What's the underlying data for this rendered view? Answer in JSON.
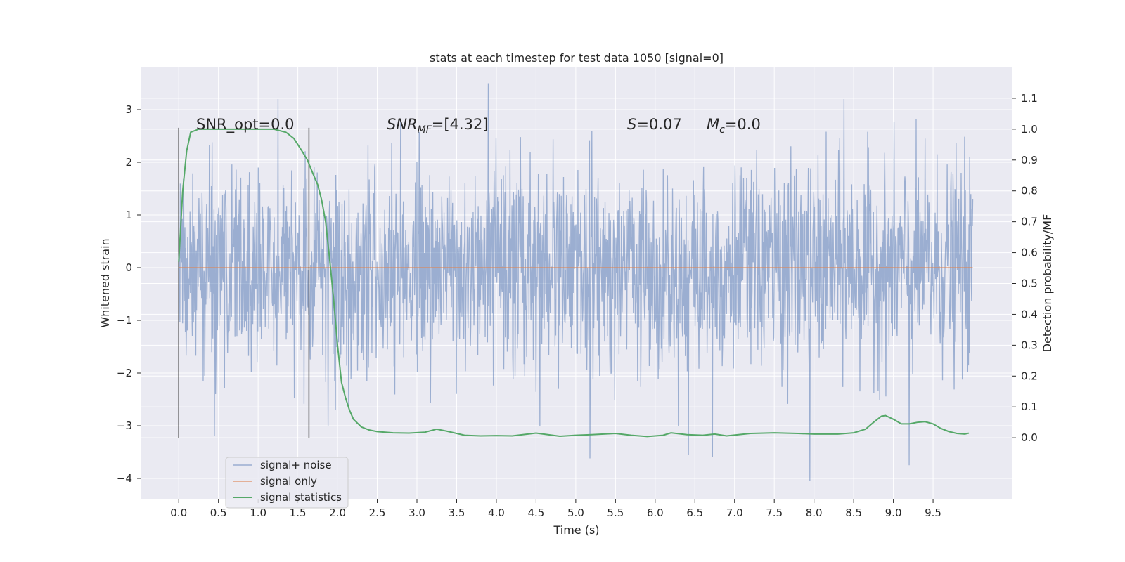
{
  "chart_data": {
    "type": "line",
    "title": "stats at each timestep for test data 1050 [signal=0]",
    "xlabel": "Time (s)",
    "ylabel_left": "Whitened strain",
    "ylabel_right": "Detection probability/MF",
    "xlim": [
      -0.48,
      10.5
    ],
    "ylim_left": [
      -4.4,
      3.8
    ],
    "ylim_right": [
      -0.2,
      1.2
    ],
    "x_ticks": [
      "0.0",
      "0.5",
      "1.0",
      "1.5",
      "2.0",
      "2.5",
      "3.0",
      "3.5",
      "4.0",
      "4.5",
      "5.0",
      "5.5",
      "6.0",
      "6.5",
      "7.0",
      "7.5",
      "8.0",
      "8.5",
      "9.0",
      "9.5"
    ],
    "y_ticks_left": [
      3,
      2,
      1,
      0,
      -1,
      -2,
      -3,
      -4
    ],
    "y_tick_labels_left": [
      "3",
      "2",
      "1",
      "0",
      "−1",
      "−2",
      "−3",
      "−4"
    ],
    "y_ticks_right": [
      1.1,
      1.0,
      0.9,
      0.8,
      0.7,
      0.6,
      0.5,
      0.4,
      0.3,
      0.2,
      0.1,
      0.0
    ],
    "y_tick_labels_right": [
      "1.1",
      "1.0",
      "0.9",
      "0.8",
      "0.7",
      "0.6",
      "0.5",
      "0.4",
      "0.3",
      "0.2",
      "0.1",
      "0.0"
    ],
    "grid": true,
    "legend_position": "lower-left",
    "annotations": {
      "snr_opt": "SNR_opt=0.0",
      "snr_mf_base": "SNR",
      "snr_mf_sub": "MF",
      "snr_mf_value": "=[4.32]",
      "s_sym": "S",
      "s_value": "=0.07",
      "mc_base": "M",
      "mc_sub": "c",
      "mc_value": "=0.0"
    },
    "vertical_lines_x": [
      0.0,
      1.64
    ],
    "vertical_lines_yrange_right": [
      0.0,
      1.0
    ],
    "series": [
      {
        "name": "signal+ noise",
        "color": "#4c72b0",
        "kind": "noise",
        "x_range": [
          0.0,
          10.0
        ],
        "samples": 2048,
        "typical_abs_max": 1.5,
        "extremes": [
          {
            "x": 1.25,
            "y": 3.2
          },
          {
            "x": 3.9,
            "y": 3.5
          },
          {
            "x": 5.18,
            "y": -3.62
          },
          {
            "x": 6.42,
            "y": -3.55
          },
          {
            "x": 6.72,
            "y": -3.6
          },
          {
            "x": 7.95,
            "y": -4.05
          },
          {
            "x": 9.2,
            "y": -3.75
          },
          {
            "x": 8.38,
            "y": 3.2
          },
          {
            "x": 0.45,
            "y": -3.2
          }
        ]
      },
      {
        "name": "signal only",
        "color": "#dd8452",
        "x": [
          0.0,
          10.0
        ],
        "y": [
          0.0,
          0.0
        ]
      },
      {
        "name": "signal statistics",
        "color": "#55a868",
        "axis": "right",
        "x": [
          0.0,
          0.05,
          0.1,
          0.15,
          0.25,
          0.4,
          0.6,
          0.8,
          1.0,
          1.2,
          1.35,
          1.45,
          1.55,
          1.62,
          1.7,
          1.75,
          1.8,
          1.85,
          1.9,
          1.95,
          2.0,
          2.05,
          2.1,
          2.15,
          2.2,
          2.3,
          2.4,
          2.5,
          2.7,
          2.9,
          3.1,
          3.25,
          3.4,
          3.6,
          3.8,
          4.0,
          4.2,
          4.5,
          4.8,
          5.0,
          5.2,
          5.5,
          5.7,
          5.9,
          6.1,
          6.2,
          6.4,
          6.6,
          6.75,
          6.9,
          7.2,
          7.5,
          7.8,
          8.0,
          8.3,
          8.5,
          8.65,
          8.75,
          8.85,
          8.9,
          9.0,
          9.1,
          9.2,
          9.3,
          9.4,
          9.5,
          9.6,
          9.7,
          9.8,
          9.9,
          9.95
        ],
        "y": [
          0.57,
          0.8,
          0.93,
          0.99,
          1.0,
          1.0,
          1.0,
          1.0,
          1.0,
          1.0,
          0.99,
          0.97,
          0.93,
          0.9,
          0.85,
          0.82,
          0.77,
          0.7,
          0.58,
          0.45,
          0.3,
          0.18,
          0.13,
          0.09,
          0.06,
          0.035,
          0.025,
          0.02,
          0.016,
          0.015,
          0.018,
          0.028,
          0.02,
          0.008,
          0.006,
          0.007,
          0.006,
          0.015,
          0.005,
          0.008,
          0.01,
          0.014,
          0.008,
          0.004,
          0.008,
          0.016,
          0.01,
          0.008,
          0.012,
          0.006,
          0.014,
          0.016,
          0.014,
          0.012,
          0.012,
          0.016,
          0.028,
          0.05,
          0.07,
          0.072,
          0.06,
          0.045,
          0.045,
          0.05,
          0.052,
          0.045,
          0.03,
          0.02,
          0.014,
          0.012,
          0.015
        ]
      }
    ]
  }
}
